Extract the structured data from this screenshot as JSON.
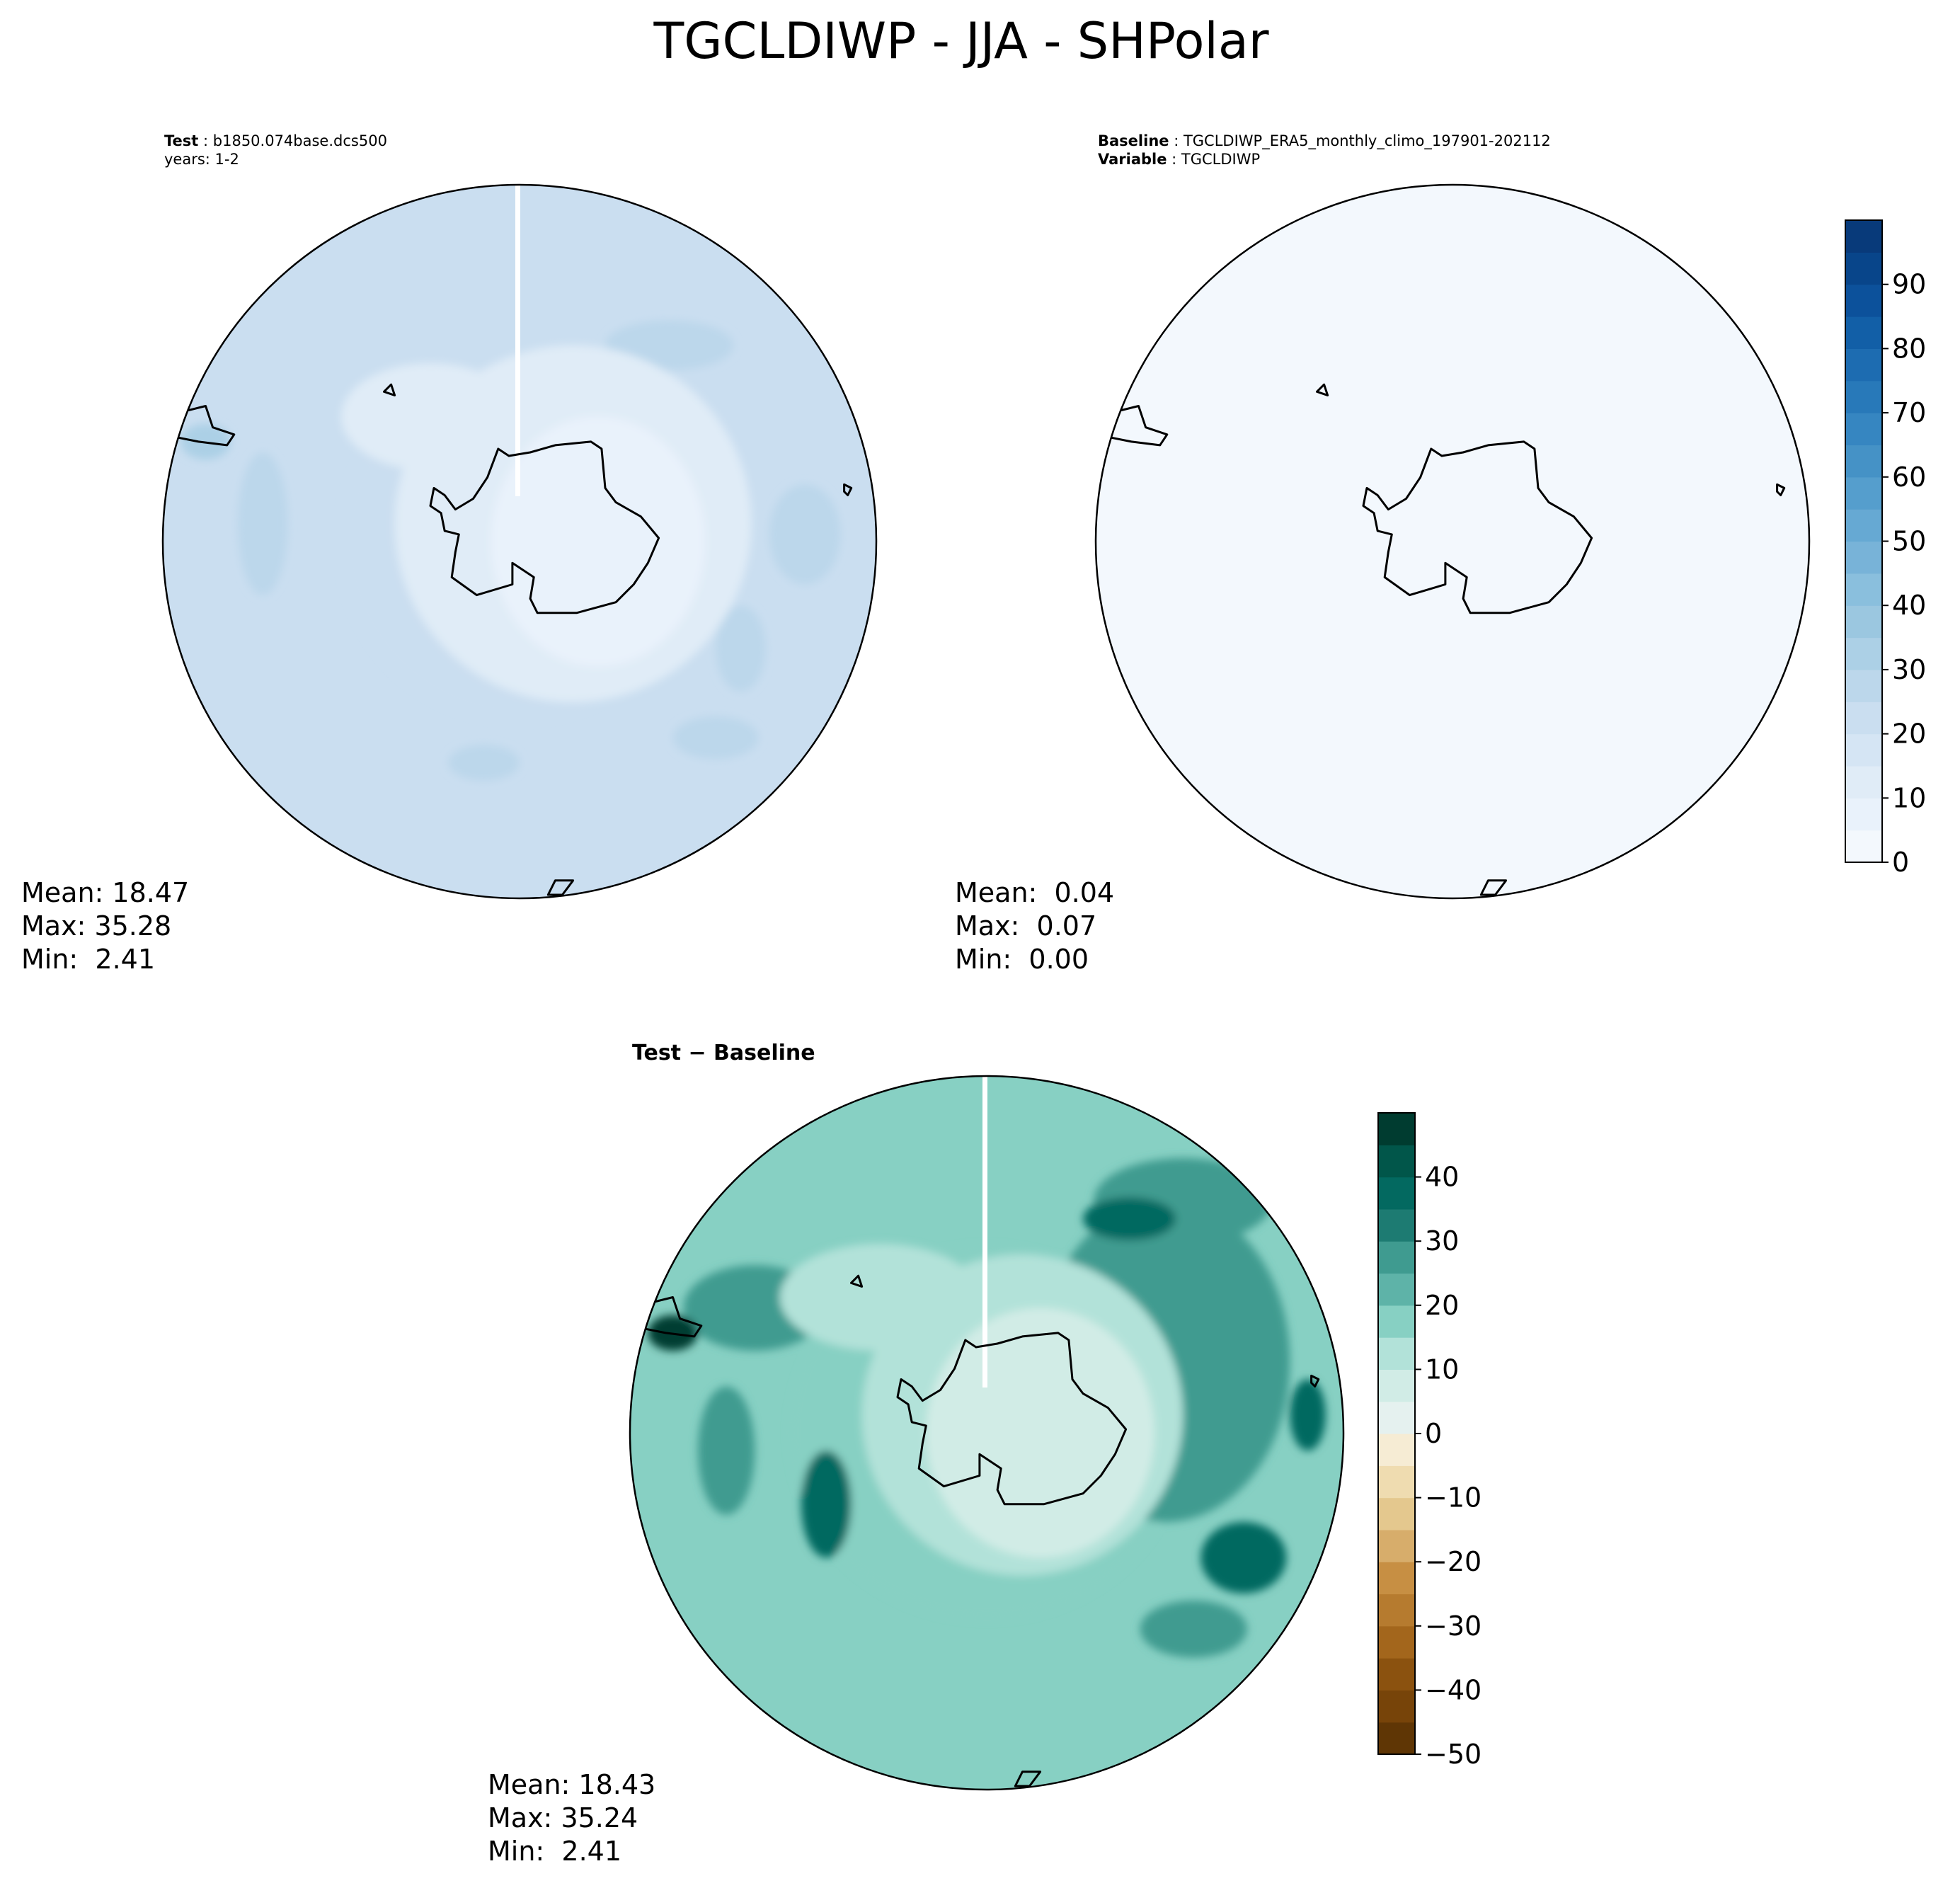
{
  "figure": {
    "title": "TGCLDIWP - JJA - SHPolar"
  },
  "chart_data": [
    {
      "type": "heatmap",
      "panel": "test",
      "projection": "south polar stereographic",
      "header_lines": [
        {
          "label": "Test",
          "text": "b1850.074base.dcs500"
        },
        {
          "label": "",
          "text": "years: 1-2"
        }
      ],
      "stats": [
        "Mean: 18.47",
        "Max: 35.28",
        "Min:  2.41"
      ],
      "colormap": "Blues",
      "colorbar_ref": "blues",
      "fields": [
        {
          "level": 20,
          "blobs": [
            [
              0.0,
              0.0,
              0.5,
              0.5
            ]
          ]
        },
        {
          "level": 25,
          "blobs": [
            [
              -0.72,
              0.05,
              0.07,
              0.2
            ],
            [
              0.42,
              0.55,
              0.18,
              0.07
            ],
            [
              0.8,
              0.02,
              0.1,
              0.14
            ],
            [
              0.55,
              -0.55,
              0.12,
              0.06
            ],
            [
              -0.1,
              -0.62,
              0.1,
              0.05
            ],
            [
              0.62,
              -0.3,
              0.07,
              0.12
            ]
          ]
        },
        {
          "level": 30,
          "blobs": [
            [
              -0.88,
              0.28,
              0.07,
              0.05
            ]
          ]
        },
        {
          "level": 10,
          "blobs": [
            [
              0.15,
              0.05,
              0.5,
              0.5
            ],
            [
              -0.25,
              0.35,
              0.25,
              0.15
            ]
          ]
        },
        {
          "level": 5,
          "blobs": [
            [
              0.22,
              0.0,
              0.3,
              0.35
            ]
          ]
        }
      ]
    },
    {
      "type": "heatmap",
      "panel": "baseline",
      "projection": "south polar stereographic",
      "header_lines": [
        {
          "label": "Baseline",
          "text": "TGCLDIWP_ERA5_monthly_climo_197901-202112"
        },
        {
          "label": "Variable",
          "text": "TGCLDIWP"
        }
      ],
      "stats": [
        "Mean:  0.04",
        "Max:  0.07",
        "Min:  0.00"
      ],
      "colormap": "Blues",
      "colorbar_ref": "blues",
      "fields": [
        {
          "level": 0,
          "blobs": [
            [
              0.0,
              0.0,
              1.2,
              1.2
            ]
          ]
        }
      ]
    },
    {
      "type": "heatmap",
      "panel": "difference",
      "projection": "south polar stereographic",
      "header_lines": [
        {
          "label": "Test − Baseline",
          "text": ""
        }
      ],
      "stats": [
        "Mean: 18.43",
        "Max: 35.24",
        "Min:  2.41"
      ],
      "colormap": "BrBG",
      "colorbar_ref": "brbg",
      "fields": [
        {
          "level": 15,
          "blobs": [
            [
              0.0,
              0.0,
              0.55,
              0.52
            ]
          ]
        },
        {
          "level": 25,
          "blobs": [
            [
              0.5,
              0.2,
              0.35,
              0.45
            ],
            [
              -0.73,
              -0.05,
              0.08,
              0.18
            ],
            [
              0.55,
              0.65,
              0.25,
              0.12
            ],
            [
              0.58,
              -0.55,
              0.15,
              0.08
            ],
            [
              -0.65,
              0.35,
              0.2,
              0.12
            ]
          ]
        },
        {
          "level": 35,
          "blobs": [
            [
              0.4,
              0.6,
              0.13,
              0.06
            ],
            [
              0.9,
              0.05,
              0.05,
              0.1
            ],
            [
              0.72,
              -0.35,
              0.12,
              0.1
            ],
            [
              -0.45,
              -0.2,
              0.07,
              0.15
            ]
          ]
        },
        {
          "level": 45,
          "blobs": [
            [
              -0.88,
              0.28,
              0.07,
              0.05
            ]
          ]
        },
        {
          "level": 10,
          "blobs": [
            [
              0.1,
              0.05,
              0.45,
              0.45
            ],
            [
              -0.3,
              0.38,
              0.28,
              0.15
            ]
          ]
        },
        {
          "level": 5,
          "blobs": [
            [
              0.15,
              0.0,
              0.32,
              0.35
            ]
          ]
        }
      ]
    }
  ],
  "colorbars": {
    "blues": {
      "levels": [
        0,
        5,
        10,
        15,
        20,
        25,
        30,
        35,
        40,
        45,
        50,
        55,
        60,
        65,
        70,
        75,
        80,
        85,
        90,
        95
      ],
      "ticks": [
        "0",
        "10",
        "20",
        "30",
        "40",
        "50",
        "60",
        "70",
        "80",
        "90"
      ],
      "colors": [
        "#f3f8fd",
        "#e9f2fb",
        "#e0ecf7",
        "#d5e5f4",
        "#cadef0",
        "#bcd7eb",
        "#acd0e6",
        "#9bc7e0",
        "#8abfdd",
        "#78b3d8",
        "#66a9d3",
        "#559ecd",
        "#4592c6",
        "#3686c1",
        "#2879b9",
        "#1d6cb1",
        "#125fa7",
        "#0c519b",
        "#08458a",
        "#083a7a"
      ]
    },
    "brbg": {
      "levels": [
        -50,
        -45,
        -40,
        -35,
        -30,
        -25,
        -20,
        -15,
        -10,
        -5,
        0,
        5,
        10,
        15,
        20,
        25,
        30,
        35,
        40,
        45
      ],
      "ticks": [
        "−50",
        "−40",
        "−30",
        "−20",
        "−10",
        "0",
        "10",
        "20",
        "30",
        "40"
      ],
      "colors": [
        "#5f3605",
        "#774409",
        "#8b520f",
        "#a3661c",
        "#b67b2f",
        "#c78f43",
        "#d7ad6b",
        "#e4c88e",
        "#efdcb0",
        "#f6ecd4",
        "#e5f1ef",
        "#d1ece6",
        "#b2e2d9",
        "#87d0c3",
        "#5eb3a8",
        "#3f9b90",
        "#1d7b72",
        "#036960",
        "#01564a",
        "#003c30"
      ]
    }
  },
  "map": {
    "land_color": "none",
    "coast_color": "#000000"
  }
}
